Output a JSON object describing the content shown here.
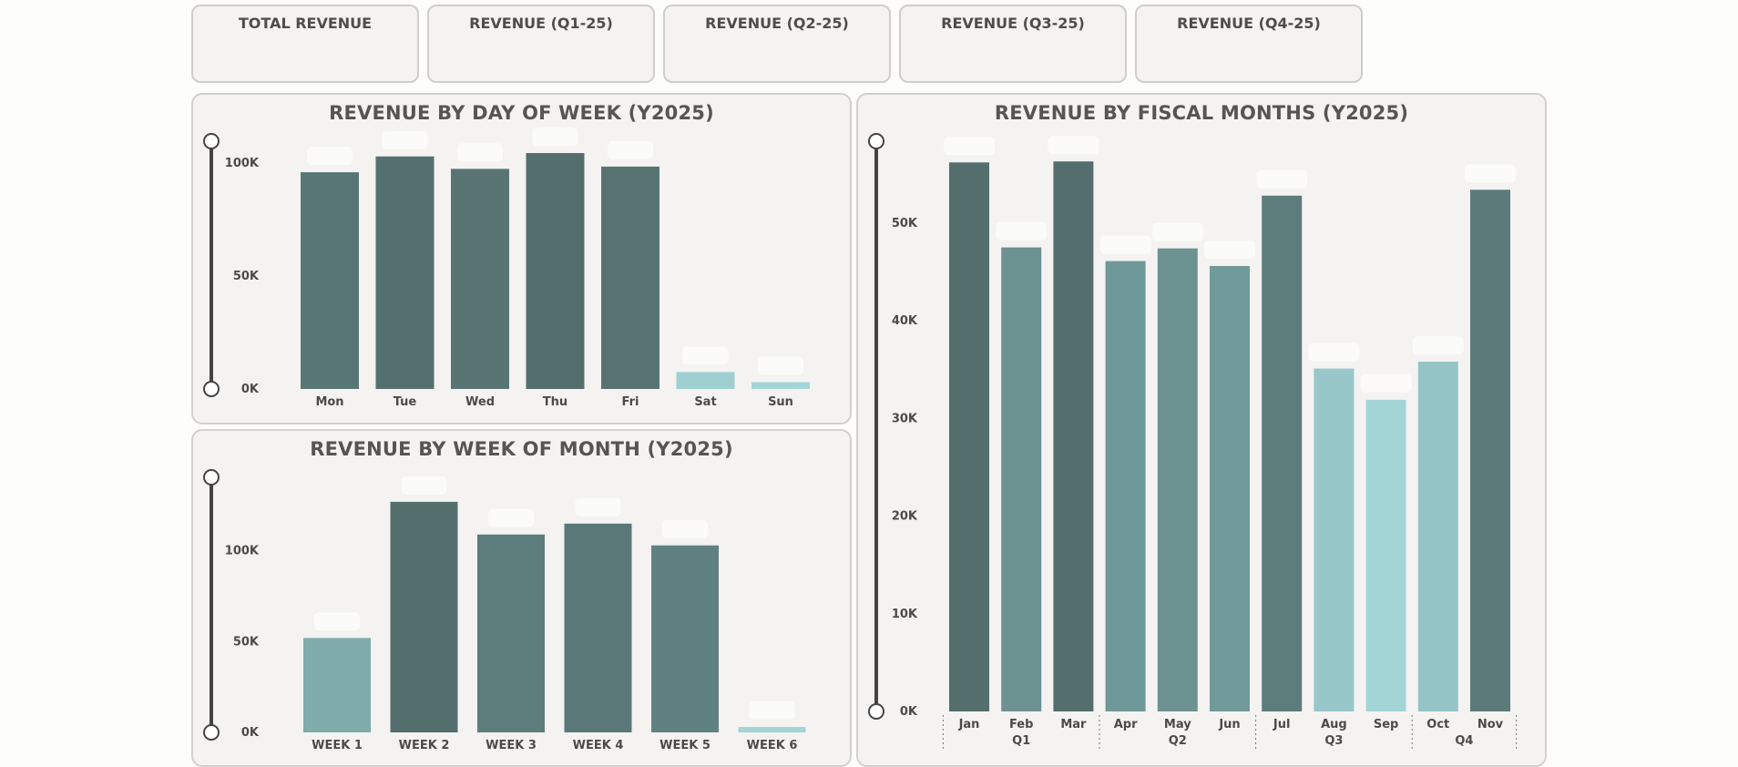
{
  "kpis": [
    {
      "title": "TOTAL REVENUE"
    },
    {
      "title": "REVENUE (Q1-25)"
    },
    {
      "title": "REVENUE (Q2-25)"
    },
    {
      "title": "REVENUE (Q3-25)"
    },
    {
      "title": "REVENUE (Q4-25)"
    }
  ],
  "panels": {
    "day": {
      "title": "REVENUE BY DAY OF WEEK (Y2025)"
    },
    "week": {
      "title": "REVENUE BY WEEK OF MONTH (Y2025)"
    },
    "month": {
      "title": "REVENUE BY FISCAL MONTHS (Y2025)"
    }
  },
  "colors": {
    "dark": "#536e6d",
    "mid": "#75a0a0",
    "light": "#a3d5d6",
    "axis": "#444444"
  },
  "chart_data": [
    {
      "type": "bar",
      "title": "REVENUE BY DAY OF WEEK (Y2025)",
      "categories": [
        "Mon",
        "Tue",
        "Wed",
        "Thu",
        "Fri",
        "Sat",
        "Sun"
      ],
      "values": [
        96000,
        103000,
        97500,
        104500,
        98500,
        7500,
        3000
      ],
      "ylim": [
        0,
        115000
      ],
      "yticks": [
        {
          "value": 0,
          "label": "0K"
        },
        {
          "value": 50000,
          "label": "50K"
        },
        {
          "value": 100000,
          "label": "100K"
        }
      ],
      "grid": false
    },
    {
      "type": "bar",
      "title": "REVENUE BY WEEK OF MONTH (Y2025)",
      "categories": [
        "WEEK 1",
        "WEEK 2",
        "WEEK 3",
        "WEEK 4",
        "WEEK 5",
        "WEEK 6"
      ],
      "values": [
        52000,
        127000,
        109000,
        115000,
        103000,
        3000
      ],
      "ylim": [
        0,
        140000
      ],
      "yticks": [
        {
          "value": 0,
          "label": "0K"
        },
        {
          "value": 50000,
          "label": "50K"
        },
        {
          "value": 100000,
          "label": "100K"
        }
      ],
      "grid": false
    },
    {
      "type": "bar",
      "title": "REVENUE BY FISCAL MONTHS (Y2025)",
      "categories": [
        "Jan",
        "Feb",
        "Mar",
        "Apr",
        "May",
        "Jun",
        "Jul",
        "Aug",
        "Sep",
        "Oct",
        "Nov"
      ],
      "quarters": [
        {
          "label": "Q1",
          "months": 3
        },
        {
          "label": "Q2",
          "months": 3
        },
        {
          "label": "Q3",
          "months": 3
        },
        {
          "label": "Q4",
          "months": 2
        }
      ],
      "values": [
        56200,
        47500,
        56300,
        46100,
        47400,
        45600,
        52800,
        35100,
        31900,
        35800,
        53400
      ],
      "ylim": [
        0,
        58000
      ],
      "yticks": [
        {
          "value": 0,
          "label": "0K"
        },
        {
          "value": 10000,
          "label": "10K"
        },
        {
          "value": 20000,
          "label": "20K"
        },
        {
          "value": 30000,
          "label": "30K"
        },
        {
          "value": 40000,
          "label": "40K"
        },
        {
          "value": 50000,
          "label": "50K"
        }
      ],
      "grid": false
    }
  ]
}
